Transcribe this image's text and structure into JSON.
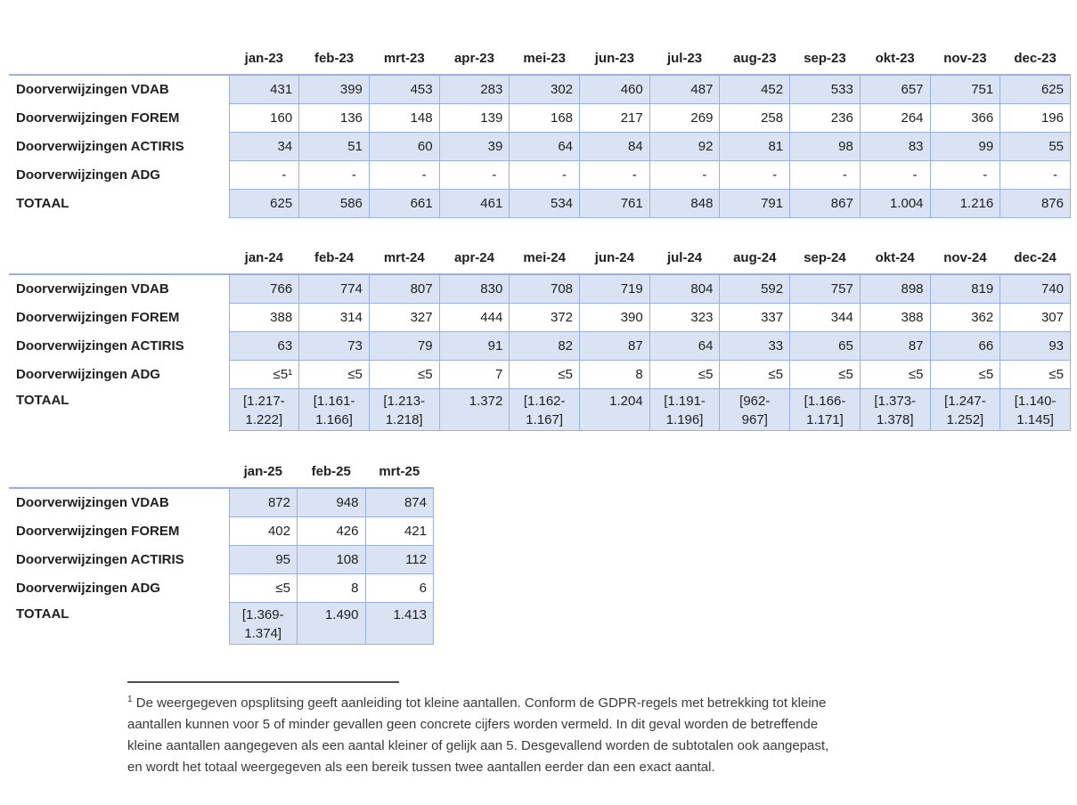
{
  "colors": {
    "cell_fill": "#dae3f3",
    "grid_border": "#9ab1de",
    "footnote_rule": "#4d4d4d",
    "text": "#1f1f1f"
  },
  "tables": [
    {
      "name": "referrals-2023",
      "months": [
        "jan-23",
        "feb-23",
        "mrt-23",
        "apr-23",
        "mei-23",
        "jun-23",
        "jul-23",
        "aug-23",
        "sep-23",
        "okt-23",
        "nov-23",
        "dec-23"
      ],
      "rows": [
        {
          "label": "Doorverwijzingen VDAB",
          "values": [
            "431",
            "399",
            "453",
            "283",
            "302",
            "460",
            "487",
            "452",
            "533",
            "657",
            "751",
            "625"
          ]
        },
        {
          "label": "Doorverwijzingen FOREM",
          "values": [
            "160",
            "136",
            "148",
            "139",
            "168",
            "217",
            "269",
            "258",
            "236",
            "264",
            "366",
            "196"
          ]
        },
        {
          "label": "Doorverwijzingen ACTIRIS",
          "values": [
            "34",
            "51",
            "60",
            "39",
            "64",
            "84",
            "92",
            "81",
            "98",
            "83",
            "99",
            "55"
          ]
        },
        {
          "label": "Doorverwijzingen ADG",
          "values": [
            "-",
            "-",
            "-",
            "-",
            "-",
            "-",
            "-",
            "-",
            "-",
            "-",
            "-",
            "-"
          ]
        },
        {
          "label": "TOTAAL",
          "values": [
            "625",
            "586",
            "661",
            "461",
            "534",
            "761",
            "848",
            "791",
            "867",
            "1.004",
            "1.216",
            "876"
          ]
        }
      ]
    },
    {
      "name": "referrals-2024",
      "months": [
        "jan-24",
        "feb-24",
        "mrt-24",
        "apr-24",
        "mei-24",
        "jun-24",
        "jul-24",
        "aug-24",
        "sep-24",
        "okt-24",
        "nov-24",
        "dec-24"
      ],
      "rows": [
        {
          "label": "Doorverwijzingen VDAB",
          "values": [
            "766",
            "774",
            "807",
            "830",
            "708",
            "719",
            "804",
            "592",
            "757",
            "898",
            "819",
            "740"
          ]
        },
        {
          "label": "Doorverwijzingen FOREM",
          "values": [
            "388",
            "314",
            "327",
            "444",
            "372",
            "390",
            "323",
            "337",
            "344",
            "388",
            "362",
            "307"
          ]
        },
        {
          "label": "Doorverwijzingen ACTIRIS",
          "values": [
            "63",
            "73",
            "79",
            "91",
            "82",
            "87",
            "64",
            "33",
            "65",
            "87",
            "66",
            "93"
          ]
        },
        {
          "label": "Doorverwijzingen ADG",
          "values": [
            "≤5¹",
            "≤5",
            "≤5",
            "7",
            "≤5",
            "8",
            "≤5",
            "≤5",
            "≤5",
            "≤5",
            "≤5",
            "≤5"
          ]
        },
        {
          "label": "TOTAAL",
          "values": [
            "[1.217-\n1.222]",
            "[1.161-\n1.166]",
            "[1.213-\n1.218]",
            "1.372",
            "[1.162-\n1.167]",
            "1.204",
            "[1.191-\n1.196]",
            "[962-\n967]",
            "[1.166-\n1.171]",
            "[1.373-\n1.378]",
            "[1.247-\n1.252]",
            "[1.140-\n1.145]"
          ]
        }
      ]
    },
    {
      "name": "referrals-2025",
      "months": [
        "jan-25",
        "feb-25",
        "mrt-25"
      ],
      "rows": [
        {
          "label": "Doorverwijzingen VDAB",
          "values": [
            "872",
            "948",
            "874"
          ]
        },
        {
          "label": "Doorverwijzingen FOREM",
          "values": [
            "402",
            "426",
            "421"
          ]
        },
        {
          "label": "Doorverwijzingen ACTIRIS",
          "values": [
            "95",
            "108",
            "112"
          ]
        },
        {
          "label": "Doorverwijzingen ADG",
          "values": [
            "≤5",
            "8",
            "6"
          ]
        },
        {
          "label": "TOTAAL",
          "values": [
            "[1.369-\n1.374]",
            "1.490",
            "1.413"
          ]
        }
      ]
    }
  ],
  "footnote": {
    "marker": "1",
    "text": "De weergegeven opsplitsing geeft aanleiding tot kleine aantallen. Conform de GDPR-regels met betrekking tot kleine\naantallen kunnen voor 5 of minder gevallen geen concrete cijfers worden vermeld. In dit geval worden de betreffende\nkleine aantallen aangegeven als een aantal kleiner of gelijk aan 5. Desgevallend worden de subtotalen ook aangepast,\nen wordt het totaal weergegeven als een bereik tussen twee aantallen eerder dan een exact aantal."
  }
}
